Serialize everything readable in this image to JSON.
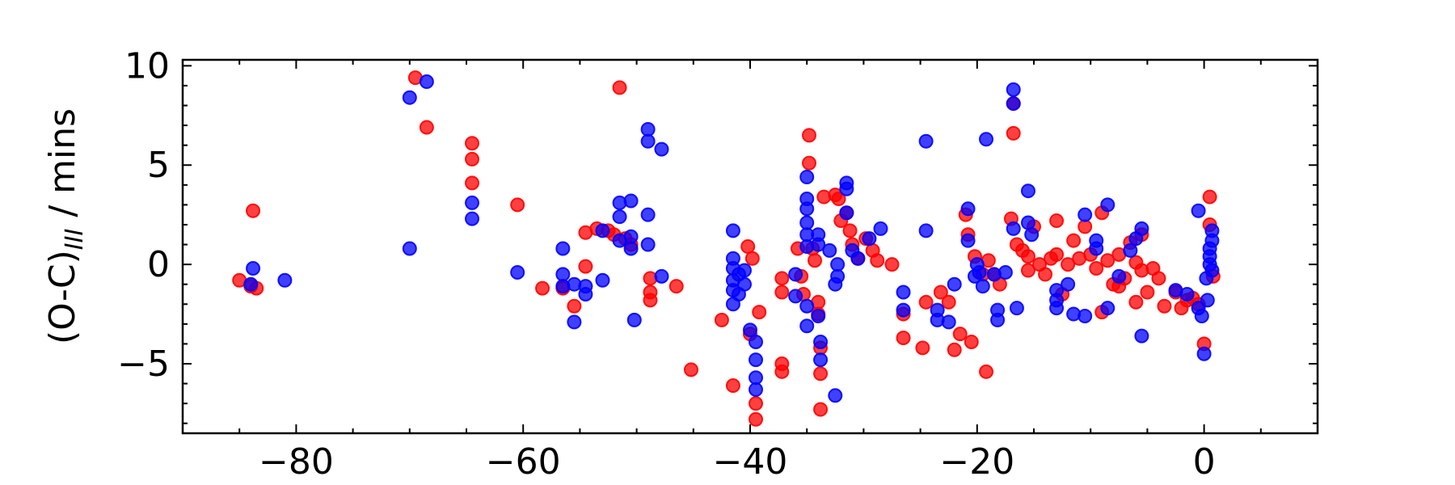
{
  "chart_data": {
    "type": "scatter",
    "title": "",
    "xlabel": "",
    "ylabel": {
      "prefix": "(O-C)",
      "subscript": "III",
      "suffix": " / mins"
    },
    "xlim": [
      -90,
      10
    ],
    "ylim": [
      -8.5,
      10.3
    ],
    "x_ticks": [
      -80,
      -60,
      -40,
      -20,
      0
    ],
    "x_tick_labels": [
      "−80",
      "−60",
      "−40",
      "−20",
      "0"
    ],
    "y_ticks": [
      -5,
      0,
      5,
      10
    ],
    "y_tick_labels": [
      "−5",
      "0",
      "5",
      "10"
    ],
    "grid": false,
    "legend": "none",
    "series": [
      {
        "color": "#ff0000",
        "opacity": 0.75,
        "points": [
          [
            -85,
            -0.8
          ],
          [
            -84,
            -1.1
          ],
          [
            -83.8,
            2.7
          ],
          [
            -83.5,
            -1.2
          ],
          [
            -69.5,
            9.4
          ],
          [
            -68.5,
            6.9
          ],
          [
            -64.5,
            6.1
          ],
          [
            -64.5,
            5.3
          ],
          [
            -64.5,
            4.1
          ],
          [
            -60.5,
            3.0
          ],
          [
            -58.3,
            -1.2
          ],
          [
            -56.5,
            -1.2
          ],
          [
            -55.5,
            -2.1
          ],
          [
            -54.5,
            1.6
          ],
          [
            -54.5,
            -0.1
          ],
          [
            -53.5,
            1.8
          ],
          [
            -52.5,
            1.7
          ],
          [
            -52,
            1.5
          ],
          [
            -51.5,
            8.9
          ],
          [
            -51,
            1.3
          ],
          [
            -50.5,
            1.0
          ],
          [
            -48.8,
            -0.7
          ],
          [
            -48.8,
            -1.4
          ],
          [
            -48.8,
            -1.8
          ],
          [
            -46.5,
            -1.1
          ],
          [
            -45.2,
            -5.3
          ],
          [
            -42.5,
            -2.8
          ],
          [
            -41.5,
            -6.1
          ],
          [
            -40.2,
            0.9
          ],
          [
            -40,
            -3.5
          ],
          [
            -39.8,
            0.3
          ],
          [
            -39.5,
            -7.0
          ],
          [
            -39.5,
            -7.8
          ],
          [
            -39.2,
            -2.4
          ],
          [
            -37.2,
            -0.7
          ],
          [
            -37.2,
            -1.4
          ],
          [
            -37.2,
            -5.0
          ],
          [
            -37.2,
            -5.4
          ],
          [
            -35.8,
            0.8
          ],
          [
            -35.5,
            -0.6
          ],
          [
            -35.3,
            -1.5
          ],
          [
            -34.8,
            6.5
          ],
          [
            -34.8,
            5.1
          ],
          [
            -34.5,
            0.8
          ],
          [
            -34.3,
            0.2
          ],
          [
            -34,
            -1.9
          ],
          [
            -34,
            -2.5
          ],
          [
            -33.8,
            -4.2
          ],
          [
            -33.8,
            -5.5
          ],
          [
            -33.8,
            -7.3
          ],
          [
            -33.5,
            3.4
          ],
          [
            -32.5,
            3.5
          ],
          [
            -32.2,
            3.3
          ],
          [
            -32,
            2.2
          ],
          [
            -31.5,
            2.6
          ],
          [
            -31.2,
            1.7
          ],
          [
            -31,
            1.0
          ],
          [
            -30.5,
            0.3
          ],
          [
            -29.8,
            1.3
          ],
          [
            -29.2,
            0.7
          ],
          [
            -28.8,
            0.2
          ],
          [
            -27.5,
            0.0
          ],
          [
            -26.5,
            -3.7
          ],
          [
            -26.5,
            -2.5
          ],
          [
            -24.8,
            -4.2
          ],
          [
            -24.5,
            -1.9
          ],
          [
            -23.2,
            -1.4
          ],
          [
            -22.5,
            -1.9
          ],
          [
            -22,
            -4.3
          ],
          [
            -21.5,
            -3.5
          ],
          [
            -21,
            2.5
          ],
          [
            -20.8,
            1.5
          ],
          [
            -20.5,
            -3.9
          ],
          [
            -20.2,
            0.4
          ],
          [
            -19.5,
            -0.5
          ],
          [
            -19.2,
            -5.4
          ],
          [
            -19,
            0.2
          ],
          [
            -18.5,
            -0.5
          ],
          [
            -18,
            -1.0
          ],
          [
            -17,
            2.3
          ],
          [
            -16.8,
            8.1
          ],
          [
            -16.8,
            6.6
          ],
          [
            -16.5,
            1.0
          ],
          [
            -16,
            0.7
          ],
          [
            -15.5,
            0.4
          ],
          [
            -15.5,
            -0.3
          ],
          [
            -15,
            1.9
          ],
          [
            -14.5,
            0.0
          ],
          [
            -14,
            -0.5
          ],
          [
            -13.5,
            0.3
          ],
          [
            -13,
            2.2
          ],
          [
            -13,
            0.5
          ],
          [
            -12.5,
            -1.5
          ],
          [
            -12,
            0.0
          ],
          [
            -11.5,
            1.2
          ],
          [
            -11,
            0.3
          ],
          [
            -10.5,
            1.9
          ],
          [
            -10,
            0.5
          ],
          [
            -9.5,
            -0.2
          ],
          [
            -9,
            2.6
          ],
          [
            -9,
            -2.4
          ],
          [
            -8.5,
            0.2
          ],
          [
            -8,
            -1.0
          ],
          [
            -7.5,
            -1.1
          ],
          [
            -7.5,
            0.5
          ],
          [
            -7,
            -0.7
          ],
          [
            -6.5,
            1.1
          ],
          [
            -6,
            0.1
          ],
          [
            -6,
            -1.9
          ],
          [
            -5.5,
            1.5
          ],
          [
            -5.5,
            -0.3
          ],
          [
            -5,
            -1.4
          ],
          [
            -4.5,
            -0.2
          ],
          [
            -4,
            -0.7
          ],
          [
            -3.5,
            -2.1
          ],
          [
            -2.5,
            -1.4
          ],
          [
            -2,
            -2.2
          ],
          [
            -1.5,
            -1.8
          ],
          [
            -1,
            -1.7
          ],
          [
            -0.5,
            -2.0
          ],
          [
            0,
            -4.0
          ],
          [
            0.5,
            3.4
          ],
          [
            0.5,
            2.0
          ],
          [
            0.8,
            -0.6
          ]
        ]
      },
      {
        "color": "#0000ff",
        "opacity": 0.75,
        "points": [
          [
            -84,
            -1.0
          ],
          [
            -83.8,
            -0.2
          ],
          [
            -81,
            -0.8
          ],
          [
            -70,
            8.4
          ],
          [
            -70,
            0.8
          ],
          [
            -68.5,
            9.2
          ],
          [
            -64.5,
            3.1
          ],
          [
            -64.5,
            2.3
          ],
          [
            -60.5,
            -0.4
          ],
          [
            -56.5,
            0.8
          ],
          [
            -56.5,
            -0.5
          ],
          [
            -56.5,
            -1.1
          ],
          [
            -55.5,
            -1.0
          ],
          [
            -55.5,
            -2.9
          ],
          [
            -54.5,
            -1.1
          ],
          [
            -54.5,
            -1.5
          ],
          [
            -53,
            1.7
          ],
          [
            -53,
            -0.8
          ],
          [
            -51.5,
            3.1
          ],
          [
            -51.5,
            2.4
          ],
          [
            -51.5,
            1.2
          ],
          [
            -50.5,
            3.2
          ],
          [
            -50.5,
            1.4
          ],
          [
            -50.5,
            0.8
          ],
          [
            -50.2,
            -2.8
          ],
          [
            -49,
            6.8
          ],
          [
            -49,
            6.2
          ],
          [
            -49,
            2.5
          ],
          [
            -49,
            1.0
          ],
          [
            -47.8,
            5.8
          ],
          [
            -47.8,
            -0.6
          ],
          [
            -41.5,
            1.7
          ],
          [
            -41.5,
            0.3
          ],
          [
            -41.5,
            -0.2
          ],
          [
            -41.5,
            -0.8
          ],
          [
            -41.5,
            -1.3
          ],
          [
            -41.5,
            -2.0
          ],
          [
            -41,
            -0.5
          ],
          [
            -41,
            -1.5
          ],
          [
            -40.5,
            -0.3
          ],
          [
            -40.5,
            -1.0
          ],
          [
            -40,
            -3.3
          ],
          [
            -39.5,
            -3.9
          ],
          [
            -39.5,
            -4.8
          ],
          [
            -39.5,
            -5.7
          ],
          [
            -39.5,
            -6.3
          ],
          [
            -36,
            -0.5
          ],
          [
            -36,
            -1.6
          ],
          [
            -35,
            4.4
          ],
          [
            -35,
            3.3
          ],
          [
            -35,
            2.8
          ],
          [
            -35,
            2.1
          ],
          [
            -35,
            1.5
          ],
          [
            -35,
            0.9
          ],
          [
            -35,
            -2.1
          ],
          [
            -35,
            -3.1
          ],
          [
            -34,
            1.5
          ],
          [
            -34,
            1.0
          ],
          [
            -34,
            -2.6
          ],
          [
            -33.8,
            -3.9
          ],
          [
            -33.8,
            -4.8
          ],
          [
            -33,
            0.7
          ],
          [
            -32.5,
            -1.0
          ],
          [
            -32.5,
            -6.6
          ],
          [
            -32.3,
            0.0
          ],
          [
            -32.3,
            -0.6
          ],
          [
            -31.5,
            4.1
          ],
          [
            -31.5,
            3.8
          ],
          [
            -31.5,
            2.6
          ],
          [
            -31,
            0.7
          ],
          [
            -30.5,
            0.3
          ],
          [
            -29.5,
            1.3
          ],
          [
            -28.5,
            1.8
          ],
          [
            -26.5,
            -1.4
          ],
          [
            -26.5,
            -2.3
          ],
          [
            -24.5,
            6.2
          ],
          [
            -24.5,
            1.7
          ],
          [
            -23.5,
            -2.3
          ],
          [
            -23.5,
            -2.8
          ],
          [
            -22.5,
            -2.9
          ],
          [
            -22,
            -1.0
          ],
          [
            -20.8,
            2.8
          ],
          [
            -20.8,
            1.2
          ],
          [
            -20.2,
            -0.6
          ],
          [
            -20,
            0.0
          ],
          [
            -19.8,
            -0.4
          ],
          [
            -19.5,
            -1.1
          ],
          [
            -19.2,
            6.3
          ],
          [
            -18.5,
            -0.5
          ],
          [
            -18.2,
            -2.3
          ],
          [
            -18.2,
            -2.8
          ],
          [
            -17.5,
            -0.4
          ],
          [
            -16.8,
            8.8
          ],
          [
            -16.8,
            8.1
          ],
          [
            -16.8,
            1.8
          ],
          [
            -16.5,
            -2.2
          ],
          [
            -15.5,
            3.7
          ],
          [
            -15.5,
            2.1
          ],
          [
            -15.2,
            1.5
          ],
          [
            -13,
            -1.3
          ],
          [
            -13,
            -1.8
          ],
          [
            -13,
            -2.2
          ],
          [
            -12,
            -1.0
          ],
          [
            -11.5,
            -2.5
          ],
          [
            -10.5,
            2.5
          ],
          [
            -10.5,
            -2.6
          ],
          [
            -9.5,
            1.2
          ],
          [
            -9.5,
            0.8
          ],
          [
            -8.5,
            3.0
          ],
          [
            -8.5,
            -2.2
          ],
          [
            -7.5,
            -0.6
          ],
          [
            -6.5,
            0.7
          ],
          [
            -6,
            1.3
          ],
          [
            -5.5,
            1.8
          ],
          [
            -5.5,
            -3.6
          ],
          [
            -2.5,
            -1.3
          ],
          [
            -1.5,
            -1.5
          ],
          [
            -0.5,
            2.7
          ],
          [
            -0.5,
            -2.2
          ],
          [
            -0.2,
            -2.6
          ],
          [
            0,
            -4.5
          ],
          [
            0.2,
            -0.7
          ],
          [
            0.3,
            -1.8
          ],
          [
            0.5,
            0.0
          ],
          [
            0.5,
            0.4
          ],
          [
            0.5,
            0.8
          ],
          [
            0.7,
            1.2
          ],
          [
            0.7,
            1.7
          ],
          [
            0.7,
            -0.3
          ]
        ]
      }
    ]
  }
}
